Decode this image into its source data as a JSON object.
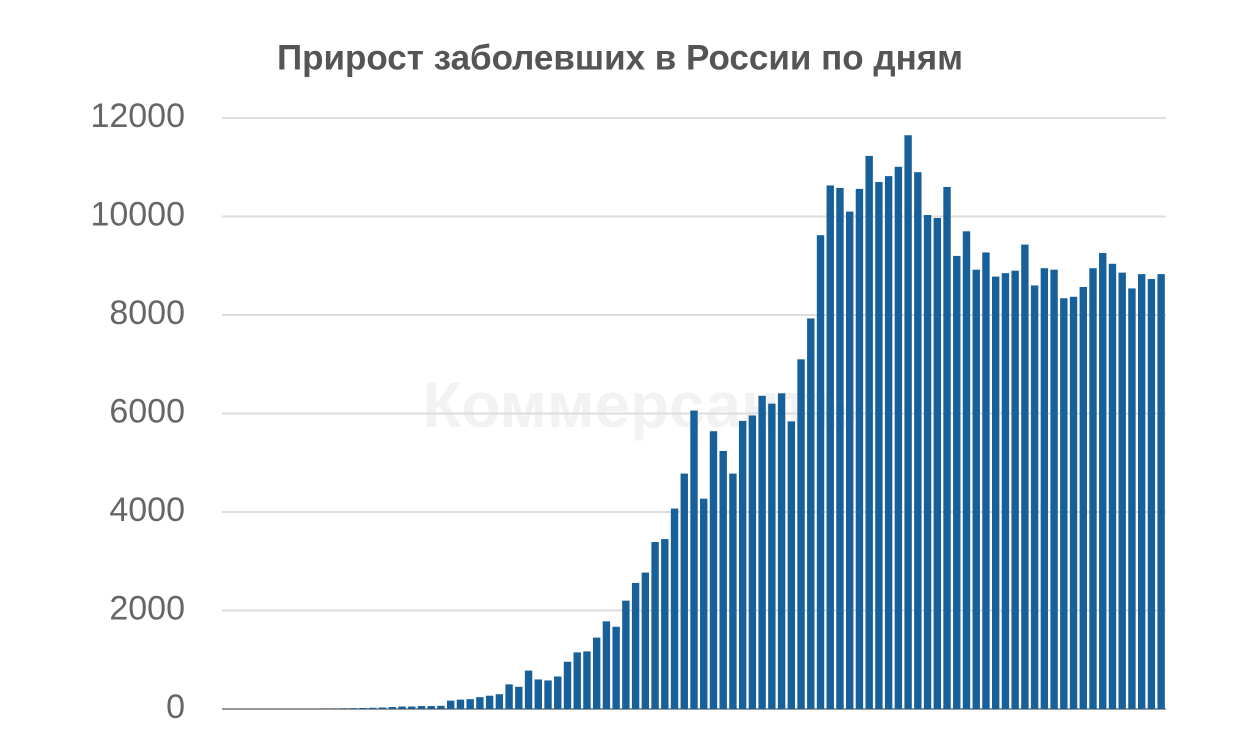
{
  "chart_data": {
    "type": "bar",
    "title": "Прирост заболевших в России по дням",
    "watermark": "Коммерсантъ",
    "values": [
      0,
      0,
      0,
      0,
      0,
      0,
      0,
      0,
      2,
      0,
      3,
      5,
      10,
      15,
      20,
      25,
      30,
      40,
      50,
      50,
      60,
      60,
      65,
      170,
      190,
      200,
      240,
      270,
      300,
      500,
      450,
      780,
      600,
      580,
      660,
      960,
      1150,
      1170,
      1450,
      1780,
      1670,
      2200,
      2560,
      2770,
      3390,
      3450,
      4070,
      4780,
      6060,
      4270,
      5640,
      5240,
      4780,
      5850,
      5960,
      6360,
      6200,
      6410,
      5840,
      7100,
      7930,
      9620,
      10630,
      10580,
      10100,
      10560,
      11230,
      10700,
      10820,
      11010,
      11650,
      10900,
      10030,
      9970,
      10600,
      9200,
      9700,
      8920,
      9270,
      8780,
      8850,
      8900,
      9430,
      8600,
      8950,
      8920,
      8340,
      8370,
      8570,
      8950,
      9260,
      9040,
      8860,
      8540,
      8830,
      8730,
      8830
    ],
    "color": "#17609a",
    "ylim": [
      0,
      12000
    ],
    "yticks": [
      0,
      2000,
      4000,
      6000,
      8000,
      10000,
      12000
    ],
    "grid": true
  }
}
